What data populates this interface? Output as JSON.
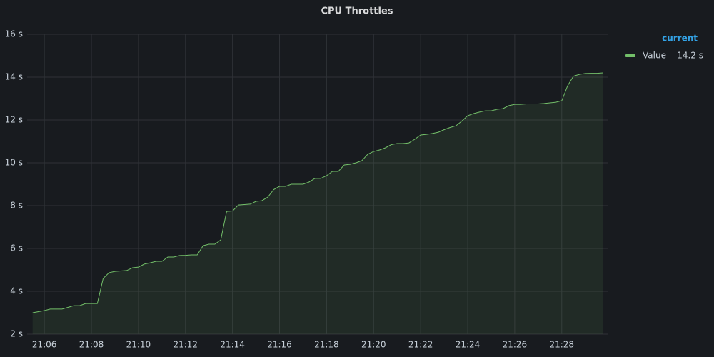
{
  "chart_data": {
    "type": "line",
    "title": "CPU Throttles",
    "x": [
      "21:05:30",
      "21:05:45",
      "21:06:00",
      "21:06:15",
      "21:06:30",
      "21:06:45",
      "21:07:00",
      "21:07:15",
      "21:07:30",
      "21:07:45",
      "21:08:00",
      "21:08:15",
      "21:08:30",
      "21:08:45",
      "21:09:00",
      "21:09:15",
      "21:09:30",
      "21:09:45",
      "21:10:00",
      "21:10:15",
      "21:10:30",
      "21:10:45",
      "21:11:00",
      "21:11:15",
      "21:11:30",
      "21:11:45",
      "21:12:00",
      "21:12:15",
      "21:12:30",
      "21:12:45",
      "21:13:00",
      "21:13:15",
      "21:13:30",
      "21:13:45",
      "21:14:00",
      "21:14:15",
      "21:14:30",
      "21:14:45",
      "21:15:00",
      "21:15:15",
      "21:15:30",
      "21:15:45",
      "21:16:00",
      "21:16:15",
      "21:16:30",
      "21:16:45",
      "21:17:00",
      "21:17:15",
      "21:17:30",
      "21:17:45",
      "21:18:00",
      "21:18:15",
      "21:18:30",
      "21:18:45",
      "21:19:00",
      "21:19:15",
      "21:19:30",
      "21:19:45",
      "21:20:00",
      "21:20:15",
      "21:20:30",
      "21:20:45",
      "21:21:00",
      "21:21:15",
      "21:21:30",
      "21:21:45",
      "21:22:00",
      "21:22:15",
      "21:22:30",
      "21:22:45",
      "21:23:00",
      "21:23:15",
      "21:23:30",
      "21:23:45",
      "21:24:00",
      "21:24:15",
      "21:24:30",
      "21:24:45",
      "21:25:00",
      "21:25:15",
      "21:25:30",
      "21:25:45",
      "21:26:00",
      "21:26:15",
      "21:26:30",
      "21:26:45",
      "21:27:00",
      "21:27:15",
      "21:27:30",
      "21:27:45",
      "21:28:00",
      "21:28:15",
      "21:28:30",
      "21:28:45",
      "21:29:00",
      "21:29:15",
      "21:29:30",
      "21:29:45"
    ],
    "series": [
      {
        "name": "Value",
        "color": "#73bf69",
        "values": [
          3.0,
          3.05,
          3.1,
          3.17,
          3.17,
          3.17,
          3.25,
          3.33,
          3.33,
          3.43,
          3.43,
          3.43,
          4.6,
          4.87,
          4.93,
          4.95,
          4.97,
          5.1,
          5.13,
          5.27,
          5.33,
          5.4,
          5.4,
          5.6,
          5.6,
          5.67,
          5.68,
          5.7,
          5.7,
          6.13,
          6.2,
          6.2,
          6.4,
          7.73,
          7.75,
          8.03,
          8.05,
          8.07,
          8.2,
          8.23,
          8.4,
          8.75,
          8.9,
          8.9,
          9.0,
          9.0,
          9.0,
          9.1,
          9.27,
          9.27,
          9.4,
          9.6,
          9.6,
          9.9,
          9.93,
          10.0,
          10.1,
          10.4,
          10.53,
          10.6,
          10.7,
          10.85,
          10.9,
          10.9,
          10.93,
          11.1,
          11.3,
          11.33,
          11.37,
          11.43,
          11.55,
          11.65,
          11.73,
          11.95,
          12.2,
          12.3,
          12.37,
          12.43,
          12.43,
          12.5,
          12.53,
          12.67,
          12.73,
          12.73,
          12.75,
          12.75,
          12.75,
          12.77,
          12.8,
          12.83,
          12.9,
          13.6,
          14.05,
          14.13,
          14.17,
          14.18,
          14.18,
          14.2
        ],
        "current": 14.2,
        "current_label": "14.2 s"
      }
    ],
    "legend_header": "current",
    "xlim": [
      "21:05:16",
      "21:29:57"
    ],
    "xticks": [
      "21:06",
      "21:08",
      "21:10",
      "21:12",
      "21:14",
      "21:16",
      "21:18",
      "21:20",
      "21:22",
      "21:24",
      "21:26",
      "21:28"
    ],
    "ylim": [
      2,
      16
    ],
    "yticks": [
      {
        "value": 2,
        "label": "2 s"
      },
      {
        "value": 4,
        "label": "4 s"
      },
      {
        "value": 6,
        "label": "6 s"
      },
      {
        "value": 8,
        "label": "8 s"
      },
      {
        "value": 10,
        "label": "10 s"
      },
      {
        "value": 12,
        "label": "12 s"
      },
      {
        "value": 14,
        "label": "14 s"
      },
      {
        "value": 16,
        "label": "16 s"
      }
    ],
    "grid": true,
    "legend": "right"
  }
}
